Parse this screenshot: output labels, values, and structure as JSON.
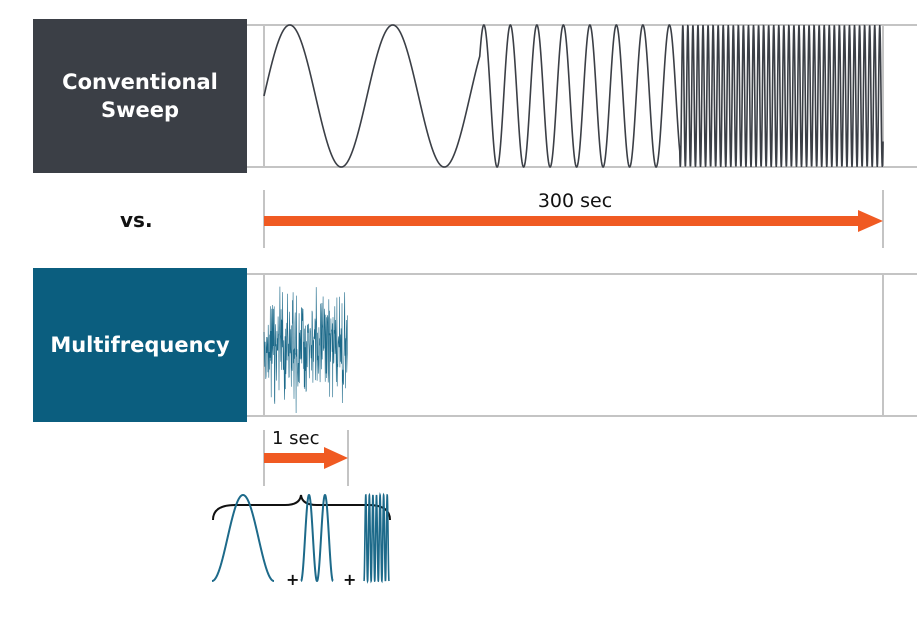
{
  "conventional": {
    "label": "Conventional Sweep",
    "color": "#3b3f46",
    "duration": "300 sec"
  },
  "versus": "vs.",
  "multifrequency": {
    "label": "Multifrequency",
    "color": "#0b5e7f",
    "duration": "1 sec"
  },
  "arrow_color": "#f05a22",
  "operators": [
    "+",
    "+"
  ]
}
